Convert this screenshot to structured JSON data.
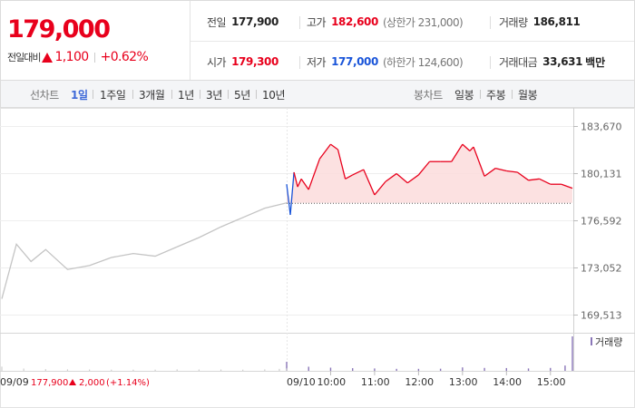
{
  "quote": {
    "current_price": "179,000",
    "change_label": "전일대비",
    "change_value": "1,100",
    "change_pct": "+0.62%"
  },
  "stats": {
    "prev_close_label": "전일",
    "prev_close": "177,900",
    "high_label": "고가",
    "high": "182,600",
    "upper_limit": "(상한가 231,000)",
    "volume_label": "거래량",
    "volume": "186,811",
    "open_label": "시가",
    "open": "179,300",
    "low_label": "저가",
    "low": "177,000",
    "lower_limit": "(하한가 124,600)",
    "trade_value_label": "거래대금",
    "trade_value": "33,631",
    "trade_value_unit": "백만"
  },
  "tabs": {
    "line_label": "선차트",
    "line_tabs": [
      "1일",
      "1주일",
      "3개월",
      "1년",
      "3년",
      "5년",
      "10년"
    ],
    "active_line_tab": "1일",
    "candle_label": "봉차트",
    "candle_tabs": [
      "일봉",
      "주봉",
      "월봉"
    ]
  },
  "chart_data": {
    "type": "line",
    "y_ticks": [
      "183,670",
      "180,131",
      "176,592",
      "173,052",
      "169,513"
    ],
    "y_tick_values": [
      183670,
      180131,
      176592,
      173052,
      169513
    ],
    "ylim": [
      169513,
      183670
    ],
    "reference_price": 177900,
    "x_labels": [
      "09/09",
      "09/10",
      "10:00",
      "11:00",
      "12:00",
      "13:00",
      "14:00",
      "15:00"
    ],
    "legend": [
      "거래량"
    ],
    "prev_day_info": {
      "date": "09/09",
      "close": "177,900",
      "change": "2,000",
      "change_pct": "(+1.14%)"
    },
    "series": [
      {
        "name": "",
        "x": [
          "09/09 09:00",
          "09/09 09:20",
          "09/09 09:40",
          "09/09 10:00",
          "09/09 10:30",
          "09/09 11:00",
          "09/09 11:30",
          "09/09 12:00",
          "09/09 12:30",
          "09/09 13:00",
          "09/09 13:30",
          "09/09 14:00",
          "09/09 14:30",
          "09/09 15:00",
          "09/09 15:30"
        ],
        "values": [
          170700,
          174800,
          173500,
          174400,
          172900,
          173200,
          173800,
          174100,
          173900,
          174600,
          175300,
          176100,
          176800,
          177500,
          177900
        ]
      },
      {
        "name": "",
        "x": [
          "09:00",
          "09:05",
          "09:10",
          "09:15",
          "09:20",
          "09:30",
          "09:45",
          "10:00",
          "10:10",
          "10:20",
          "10:30",
          "10:45",
          "11:00",
          "11:15",
          "11:30",
          "11:45",
          "12:00",
          "12:15",
          "12:30",
          "12:45",
          "13:00",
          "13:10",
          "13:15",
          "13:30",
          "13:45",
          "14:00",
          "14:15",
          "14:30",
          "14:45",
          "15:00",
          "15:15",
          "15:30"
        ],
        "values": [
          179300,
          177000,
          180200,
          179100,
          179700,
          178900,
          181200,
          182300,
          181900,
          179700,
          180000,
          180400,
          178500,
          179500,
          180100,
          179400,
          180000,
          181000,
          181000,
          181000,
          182300,
          181800,
          182100,
          179900,
          180500,
          180300,
          180200,
          179600,
          179700,
          179300,
          179300,
          179000
        ]
      }
    ],
    "volume": {
      "x": [
        "09:00",
        "09:30",
        "10:00",
        "10:30",
        "11:00",
        "11:30",
        "12:00",
        "12:30",
        "13:00",
        "13:30",
        "14:00",
        "14:30",
        "15:00",
        "15:20",
        "15:30"
      ],
      "values": [
        6800,
        3100,
        2400,
        2000,
        1800,
        1500,
        1500,
        1600,
        2600,
        2200,
        2100,
        1800,
        2200,
        4000,
        26000
      ],
      "prev_day_values": [
        3200,
        1700,
        1300,
        1100,
        1000,
        900,
        900,
        900,
        1100,
        1000,
        1000,
        900,
        1100,
        1500,
        1800
      ]
    }
  },
  "colors": {
    "up": "#e8001c",
    "down": "#1a55d9",
    "prev_line": "#c4c4c4",
    "area_fill": "#fcdcdc",
    "volume_bar": "#8a76b8",
    "tab_active": "#3e69d8"
  }
}
